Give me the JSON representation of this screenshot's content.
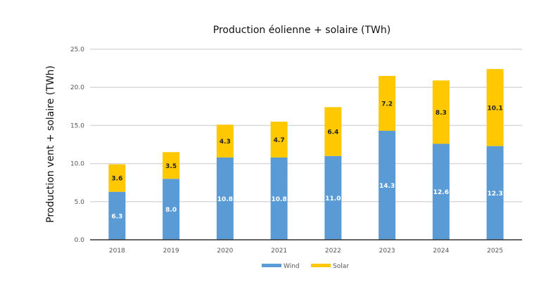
{
  "chart_data": {
    "type": "bar",
    "stacked": true,
    "title": "Production éolienne + solaire (TWh)",
    "xlabel": "",
    "ylabel": "Production vent + solaire (TWh)",
    "ylim": [
      0,
      25
    ],
    "yticks": [
      "0.0",
      "5.0",
      "10.0",
      "15.0",
      "20.0",
      "25.0"
    ],
    "ytick_values": [
      0,
      5,
      10,
      15,
      20,
      25
    ],
    "grid": true,
    "legend_position": "bottom",
    "categories": [
      "2018",
      "2019",
      "2020",
      "2021",
      "2022",
      "2023",
      "2024",
      "2025"
    ],
    "series": [
      {
        "name": "Wind",
        "color": "#5b9bd5",
        "label_color": "#ffffff",
        "values": [
          6.3,
          8.0,
          10.8,
          10.8,
          11.0,
          14.3,
          12.6,
          12.3
        ],
        "labels": [
          "6.3",
          "8.0",
          "10.8",
          "10.8",
          "11.0",
          "14.3",
          "12.6",
          "12.3"
        ]
      },
      {
        "name": "Solar",
        "color": "#ffc800",
        "label_color": "#222222",
        "values": [
          3.6,
          3.5,
          4.3,
          4.7,
          6.4,
          7.2,
          8.3,
          10.1
        ],
        "labels": [
          "3.6",
          "3.5",
          "4.3",
          "4.7",
          "6.4",
          "7.2",
          "8.3",
          "10.1"
        ]
      }
    ]
  }
}
